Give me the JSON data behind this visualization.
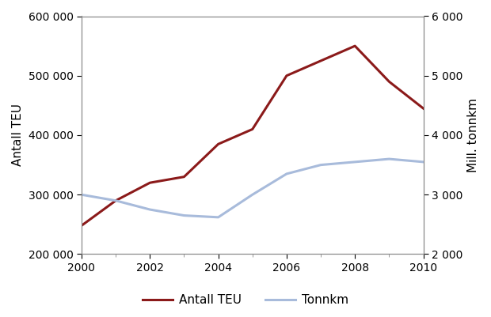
{
  "years": [
    2000,
    2001,
    2002,
    2003,
    2004,
    2005,
    2006,
    2007,
    2008,
    2009,
    2010
  ],
  "teu": [
    248000,
    290000,
    320000,
    330000,
    385000,
    410000,
    500000,
    525000,
    550000,
    490000,
    445000
  ],
  "tonnkm": [
    3000,
    2900,
    2750,
    2650,
    2620,
    3000,
    3350,
    3500,
    3550,
    3600,
    3550
  ],
  "teu_color": "#8B1A1A",
  "tonnkm_color": "#A8BBDB",
  "left_ylim": [
    200000,
    600000
  ],
  "right_ylim": [
    2000,
    6000
  ],
  "left_yticks": [
    200000,
    300000,
    400000,
    500000,
    600000
  ],
  "right_yticks": [
    2000,
    3000,
    4000,
    5000,
    6000
  ],
  "xticks": [
    2000,
    2002,
    2004,
    2006,
    2008,
    2010
  ],
  "xlim": [
    2000,
    2010
  ],
  "left_ylabel": "Antall TEU",
  "right_ylabel": "Mill. tonnkm",
  "legend_labels": [
    "Antall TEU",
    "Tonnkm"
  ],
  "linewidth": 2.2,
  "background_color": "#ffffff"
}
